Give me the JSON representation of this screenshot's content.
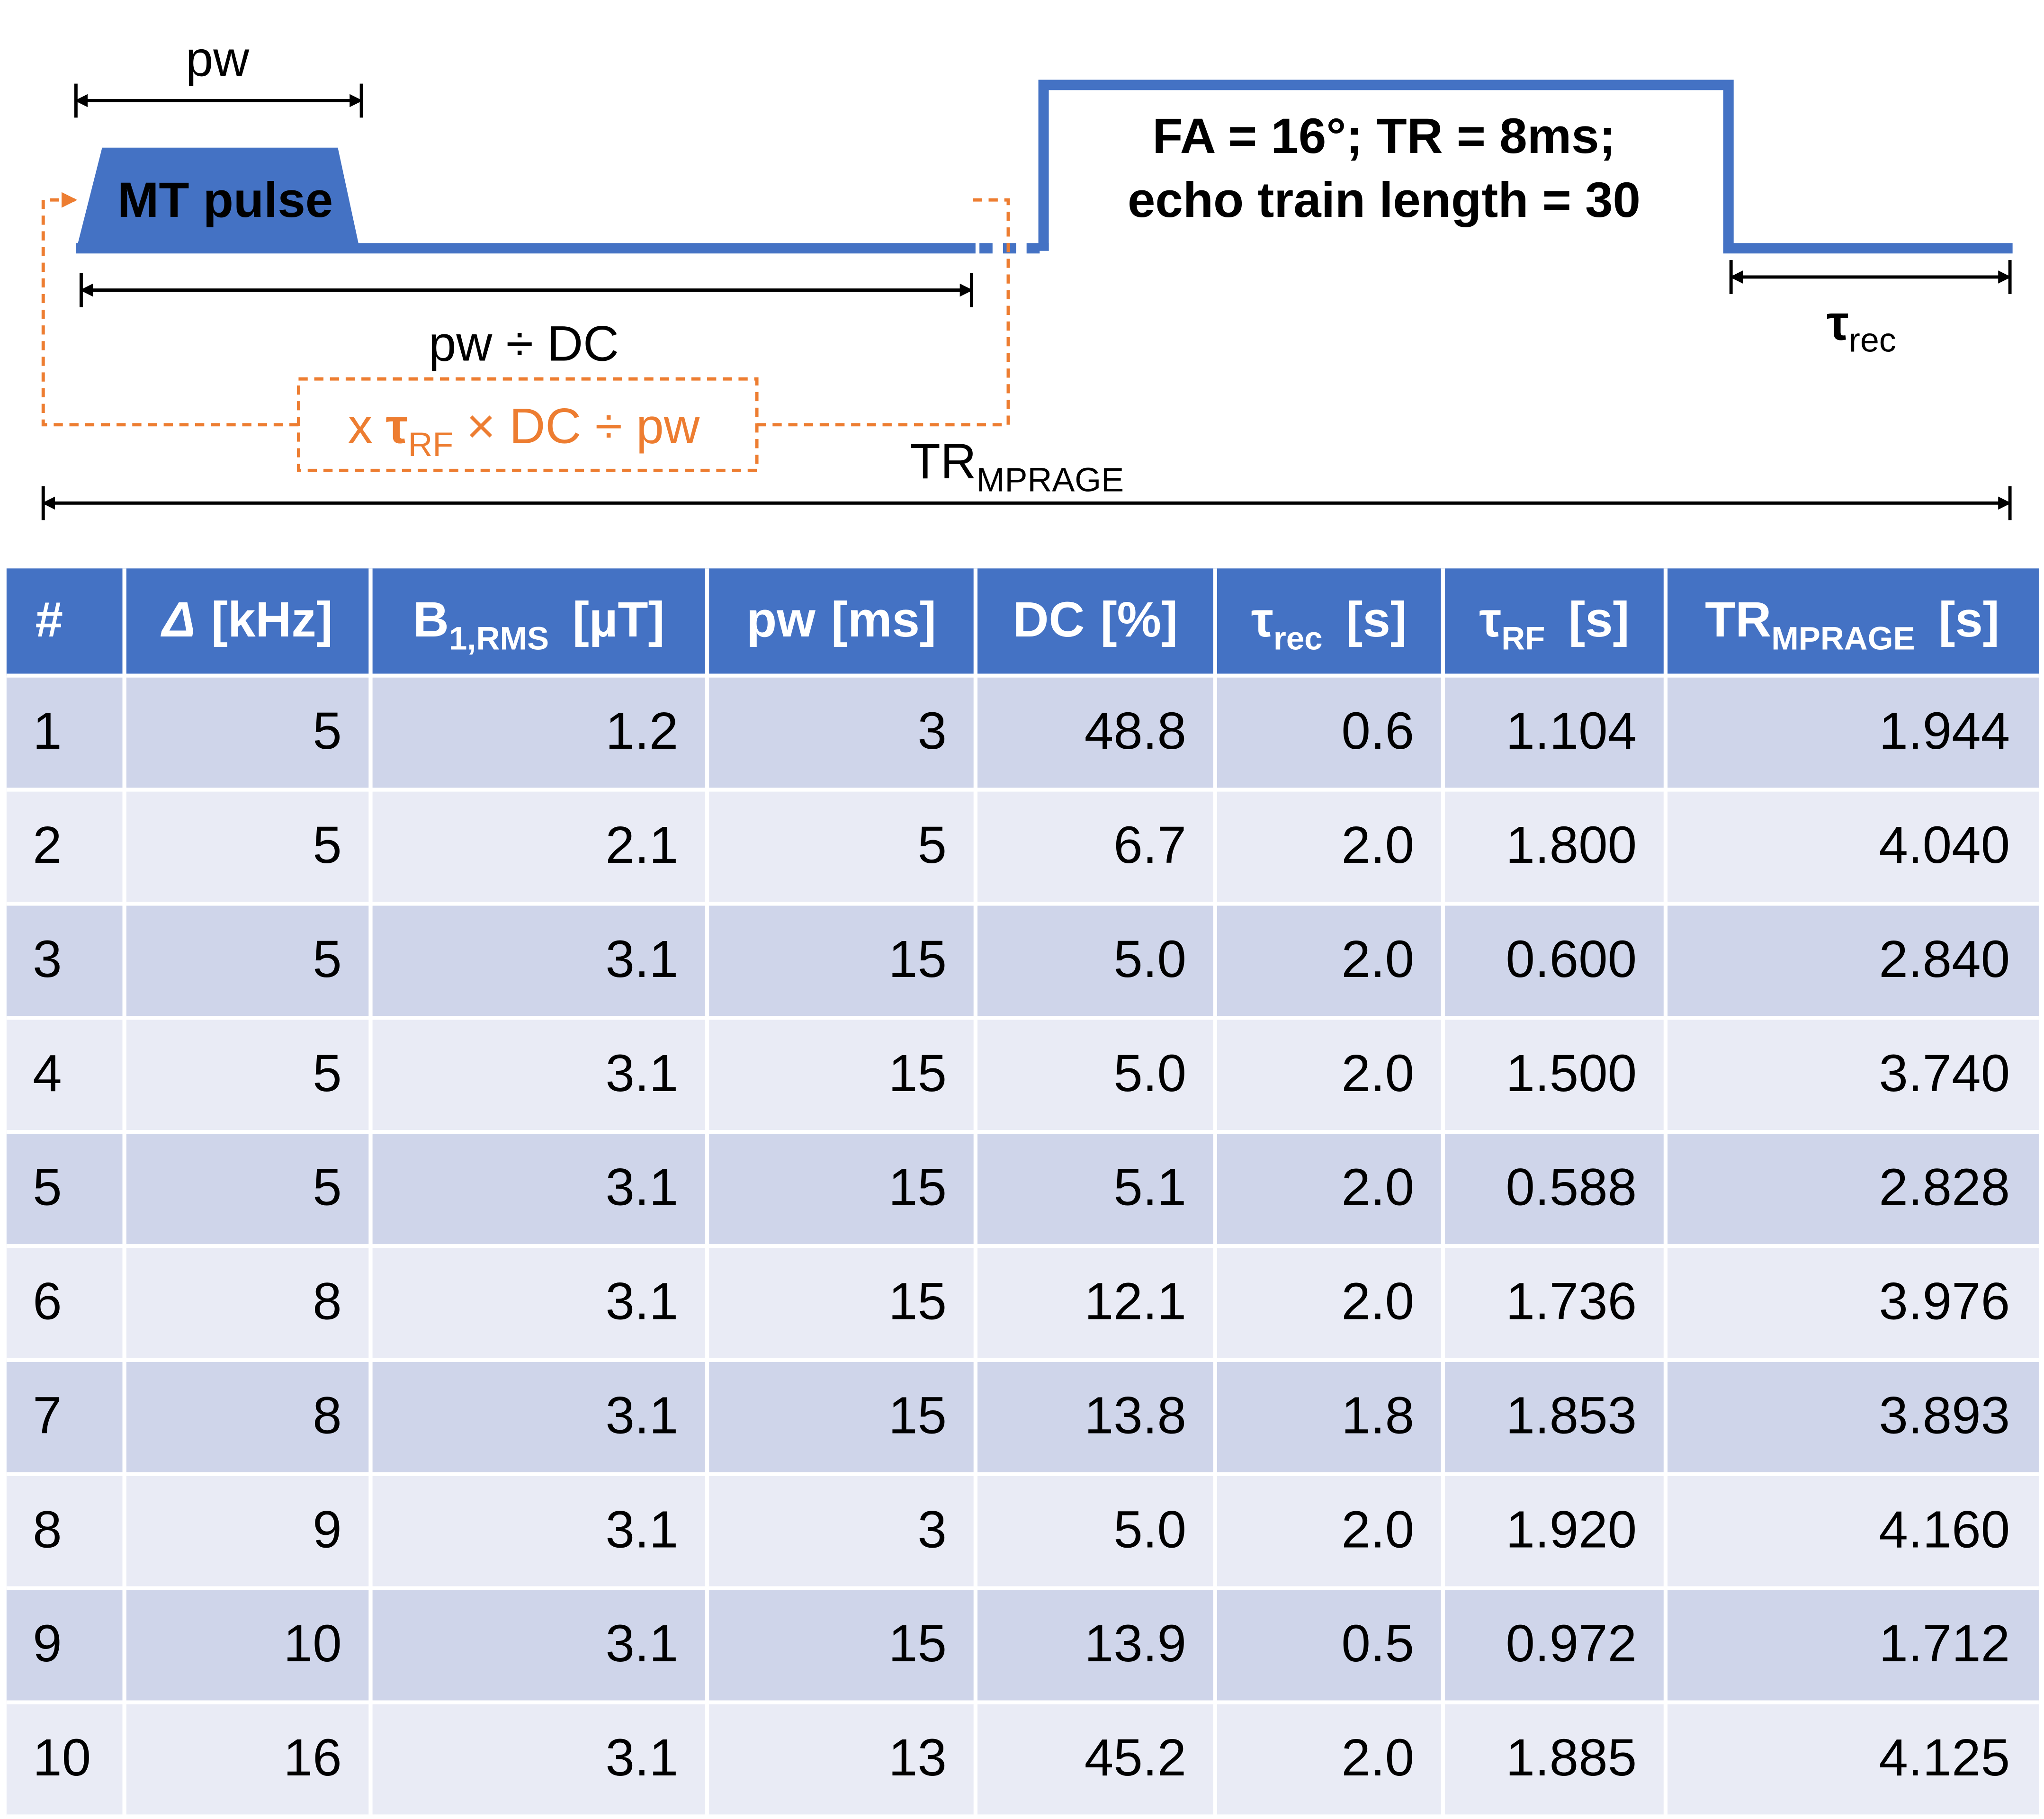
{
  "diagram": {
    "pw_label": "pw",
    "pulse_label": "MT pulse",
    "readout_line1": "FA = 16°; TR = 8ms;",
    "readout_line2": "echo train length = 30",
    "interval_label": "pw ÷ DC",
    "repeat_label": {
      "pre": "x",
      "main": "τ",
      "sub": "RF",
      "post": "× DC ÷ pw"
    },
    "tr_label": {
      "main": "TR",
      "sub": "MPRAGE"
    },
    "rec_label": {
      "main": "τ",
      "sub": "rec"
    }
  },
  "table": {
    "header": [
      {
        "main": "#"
      },
      {
        "main": "Δ",
        "unit": "[kHz]"
      },
      {
        "main": "B",
        "sub": "1,RMS",
        "unit": "[µT]"
      },
      {
        "main": "pw",
        "unit": "[ms]"
      },
      {
        "main": "DC",
        "unit": "[%]"
      },
      {
        "main": "τ",
        "sub": "rec",
        "unit": "[s]"
      },
      {
        "main": "τ",
        "sub": "RF",
        "unit": "[s]"
      },
      {
        "main": "TR",
        "sub": "MPRAGE",
        "unit": "[s]"
      }
    ],
    "rows": [
      [
        "1",
        "5",
        "1.2",
        "3",
        "48.8",
        "0.6",
        "1.104",
        "1.944"
      ],
      [
        "2",
        "5",
        "2.1",
        "5",
        "6.7",
        "2.0",
        "1.800",
        "4.040"
      ],
      [
        "3",
        "5",
        "3.1",
        "15",
        "5.0",
        "2.0",
        "0.600",
        "2.840"
      ],
      [
        "4",
        "5",
        "3.1",
        "15",
        "5.0",
        "2.0",
        "1.500",
        "3.740"
      ],
      [
        "5",
        "5",
        "3.1",
        "15",
        "5.1",
        "2.0",
        "0.588",
        "2.828"
      ],
      [
        "6",
        "8",
        "3.1",
        "15",
        "12.1",
        "2.0",
        "1.736",
        "3.976"
      ],
      [
        "7",
        "8",
        "3.1",
        "15",
        "13.8",
        "1.8",
        "1.853",
        "3.893"
      ],
      [
        "8",
        "9",
        "3.1",
        "3",
        "5.0",
        "2.0",
        "1.920",
        "4.160"
      ],
      [
        "9",
        "10",
        "3.1",
        "15",
        "13.9",
        "0.5",
        "0.972",
        "1.712"
      ],
      [
        "10",
        "16",
        "3.1",
        "13",
        "45.2",
        "2.0",
        "1.885",
        "4.125"
      ]
    ]
  }
}
